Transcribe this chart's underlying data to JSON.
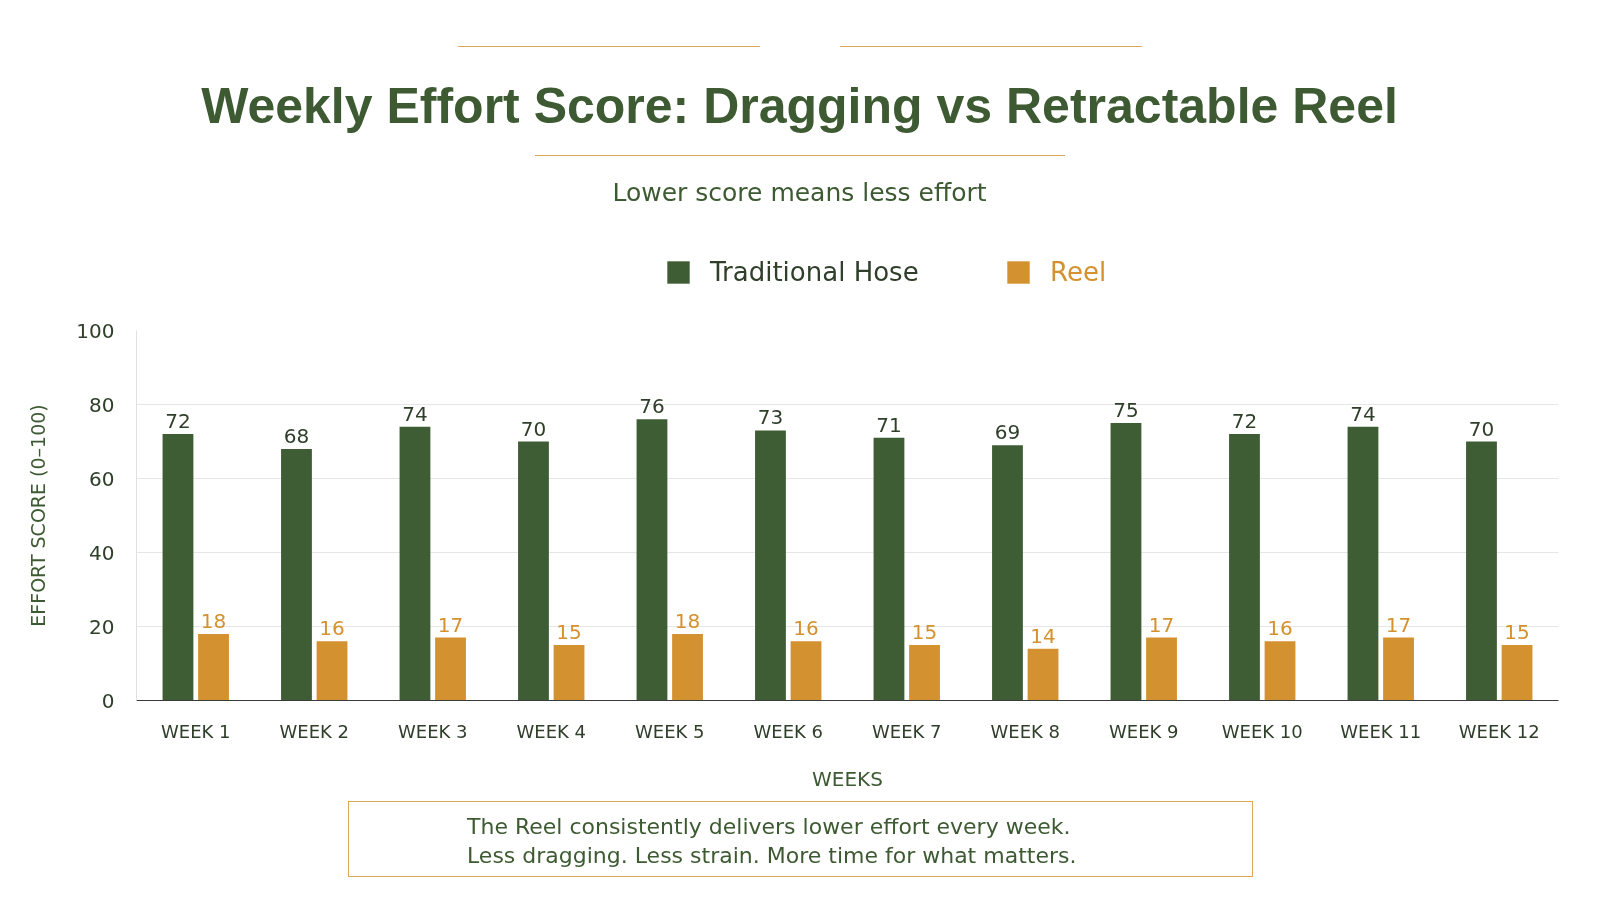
{
  "chart_data": {
    "type": "bar",
    "title": "Weekly Effort Score: Dragging vs Retractable Reel",
    "subtitle": "Lower score means less effort",
    "xlabel": "WEEKS",
    "ylabel": "EFFORT SCORE (0–100)",
    "categories": [
      "WEEK 1",
      "WEEK 2",
      "WEEK 3",
      "WEEK 4",
      "WEEK 5",
      "WEEK 6",
      "WEEK 7",
      "WEEK 8",
      "WEEK 9",
      "WEEK 10",
      "WEEK 11",
      "WEEK 12"
    ],
    "series": [
      {
        "name": "Traditional Hose",
        "color": "#3f5d35",
        "values": [
          72,
          68,
          74,
          70,
          76,
          73,
          71,
          69,
          75,
          72,
          74,
          70
        ]
      },
      {
        "name": "Reel",
        "color": "#d4912f",
        "values": [
          18,
          16,
          17,
          15,
          18,
          16,
          15,
          14,
          17,
          16,
          17,
          15
        ]
      }
    ],
    "ylim": [
      0,
      100
    ],
    "yticks": [
      0,
      20,
      40,
      60,
      80,
      100
    ],
    "grid": "y",
    "legend": "top",
    "data_labels": true,
    "annotations": [
      "The Reel consistently delivers lower effort every week.",
      "Less dragging. Less strain. More time for what matters."
    ]
  }
}
